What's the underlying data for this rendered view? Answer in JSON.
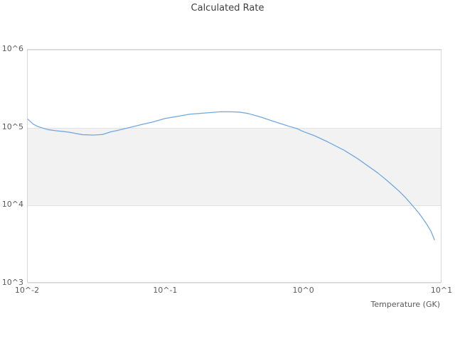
{
  "chart_data": {
    "type": "line",
    "title": "Calculated Rate",
    "xlabel": "Temperature (GK)",
    "ylabel": "",
    "x_scale": "log",
    "y_scale": "log",
    "xlim": [
      0.01,
      10
    ],
    "ylim": [
      1000,
      1000000
    ],
    "grid": "horizontal",
    "legend": "none",
    "x_ticks": [
      {
        "label": "10^-2",
        "value": 0.01
      },
      {
        "label": "10^-1",
        "value": 0.1
      },
      {
        "label": "10^0",
        "value": 1
      },
      {
        "label": "10^1",
        "value": 10
      }
    ],
    "y_ticks": [
      {
        "label": "10^3",
        "value": 1000
      },
      {
        "label": "10^4",
        "value": 10000
      },
      {
        "label": "10^5",
        "value": 100000
      },
      {
        "label": "10^6",
        "value": 1000000
      }
    ],
    "alternate_band": {
      "from": 10000,
      "to": 100000,
      "color": "#f2f2f2"
    },
    "series": [
      {
        "name": "Calculated Rate",
        "color": "#6fa8e4",
        "points": [
          [
            0.01,
            127000
          ],
          [
            0.011,
            109000
          ],
          [
            0.012,
            101000
          ],
          [
            0.014,
            93000
          ],
          [
            0.016,
            90000
          ],
          [
            0.018,
            88000
          ],
          [
            0.02,
            86000
          ],
          [
            0.025,
            80000
          ],
          [
            0.03,
            79000
          ],
          [
            0.035,
            80500
          ],
          [
            0.04,
            87000
          ],
          [
            0.045,
            91000
          ],
          [
            0.05,
            95000
          ],
          [
            0.06,
            103000
          ],
          [
            0.07,
            110000
          ],
          [
            0.08,
            116000
          ],
          [
            0.1,
            130000
          ],
          [
            0.12,
            137000
          ],
          [
            0.15,
            147000
          ],
          [
            0.2,
            153000
          ],
          [
            0.25,
            158000
          ],
          [
            0.3,
            158000
          ],
          [
            0.35,
            156000
          ],
          [
            0.4,
            150000
          ],
          [
            0.5,
            134000
          ],
          [
            0.6,
            120000
          ],
          [
            0.7,
            110000
          ],
          [
            0.8,
            102000
          ],
          [
            0.9,
            96000
          ],
          [
            1.0,
            88000
          ],
          [
            1.2,
            78000
          ],
          [
            1.5,
            65000
          ],
          [
            2.0,
            50000
          ],
          [
            2.5,
            39000
          ],
          [
            3.0,
            31000
          ],
          [
            3.5,
            25500
          ],
          [
            4.0,
            21000
          ],
          [
            4.5,
            17500
          ],
          [
            5.0,
            14800
          ],
          [
            5.5,
            12500
          ],
          [
            6.0,
            10500
          ],
          [
            6.5,
            8900
          ],
          [
            7.0,
            7600
          ],
          [
            7.5,
            6400
          ],
          [
            8.0,
            5400
          ],
          [
            8.5,
            4500
          ],
          [
            9.0,
            3500
          ]
        ]
      }
    ],
    "colors": {
      "line": "#6fa8e4",
      "band": "#f2f2f2",
      "grid": "#e3e3e3",
      "border": "#d6d6d6",
      "title_text": "#3f3f3f",
      "tick_text": "#5a5a5a",
      "background": "#ffffff"
    }
  }
}
